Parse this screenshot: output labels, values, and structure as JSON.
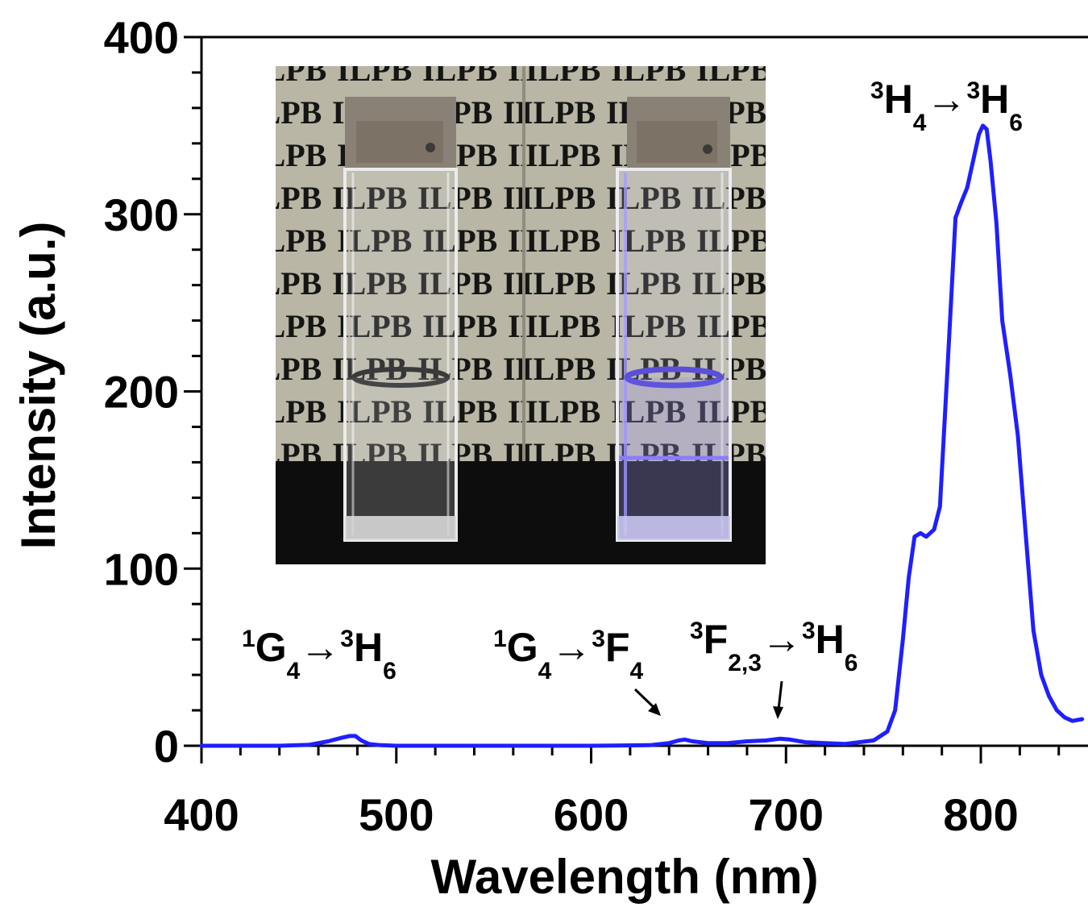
{
  "chart_data": {
    "type": "line",
    "xlabel": "Wavelength (nm)",
    "ylabel": "Intensity (a.u.)",
    "xlim": [
      400,
      855
    ],
    "ylim": [
      0,
      400
    ],
    "x_ticks": [
      400,
      500,
      600,
      700,
      800
    ],
    "y_ticks": [
      0,
      100,
      200,
      300,
      400
    ],
    "grid": false,
    "line_color": "#1f1fff",
    "series": [
      {
        "x": [
          400,
          420,
          440,
          455,
          465,
          472,
          476,
          479,
          482,
          486,
          492,
          500,
          520,
          560,
          600,
          630,
          640,
          645,
          648,
          652,
          660,
          670,
          680,
          690,
          697,
          702,
          710,
          730,
          745,
          752,
          756,
          760,
          763,
          766,
          769,
          772,
          776,
          779,
          783,
          787,
          790,
          793,
          796,
          799,
          801,
          803,
          805,
          808,
          811,
          815,
          819,
          823,
          827,
          831,
          835,
          839,
          843,
          847,
          852
        ],
        "y": [
          0,
          0,
          0,
          0.5,
          2.5,
          4.5,
          5.5,
          5.5,
          3,
          1,
          0.3,
          0,
          0,
          0,
          0,
          0.3,
          1.5,
          3,
          3.5,
          2.5,
          1.5,
          1.5,
          2.5,
          3,
          4,
          3.5,
          2,
          1,
          3,
          8,
          20,
          60,
          95,
          118,
          120,
          118,
          122,
          135,
          215,
          298,
          307,
          315,
          330,
          345,
          350,
          348,
          330,
          295,
          240,
          210,
          175,
          120,
          65,
          40,
          28,
          20,
          16,
          14,
          15
        ]
      }
    ],
    "annotations": [
      {
        "base1_sup": "1",
        "base1": "G",
        "base1_sub": "4",
        "arrow": "→",
        "base2_sup": "3",
        "base2": "H",
        "base2_sub": "6"
      },
      {
        "base1_sup": "1",
        "base1": "G",
        "base1_sub": "4",
        "arrow": "→",
        "base2_sup": "3",
        "base2": "F",
        "base2_sub": "4"
      },
      {
        "base1_sup": "3",
        "base1": "F",
        "base1_sub": "2,3",
        "arrow": "→",
        "base2_sup": "3",
        "base2": "H",
        "base2_sub": "6"
      },
      {
        "base1_sup": "3",
        "base1": "H",
        "base1_sub": "4",
        "arrow": "→",
        "base2_sup": "3",
        "base2": "H",
        "base2_sub": "6"
      }
    ]
  },
  "inset_photo": {
    "background_text": "ILPB",
    "colors": {
      "paper": "#b9b6a6",
      "ink": "#151513",
      "dark_band": "#0d0d0d",
      "glow": "#7c6cff"
    }
  }
}
